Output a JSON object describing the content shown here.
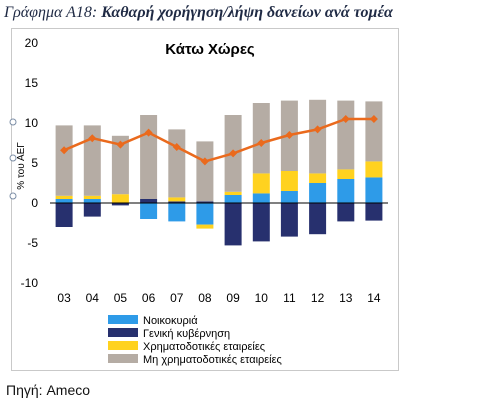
{
  "heading": {
    "label": "Γράφημα Α18:",
    "title": "Καθαρή χορήγηση/λήψη δανείων ανά τομέα"
  },
  "source": "Πηγή: Ameco",
  "chart_data": {
    "type": "bar",
    "stacked": true,
    "title": "Κάτω Χώρες",
    "ylabel": "% του ΑΕΓ",
    "xlabel": "",
    "categories": [
      "03",
      "04",
      "05",
      "06",
      "07",
      "08",
      "09",
      "10",
      "11",
      "12",
      "13",
      "14"
    ],
    "ylim": [
      -10,
      20
    ],
    "yticks": [
      -10,
      -5,
      0,
      5,
      10,
      15,
      20
    ],
    "grid": false,
    "legend_position": "bottom",
    "series": [
      {
        "name": "Νοικοκυριά",
        "kind": "bar",
        "color": "#2e9be8",
        "values": [
          0.5,
          0.5,
          0.0,
          -2.0,
          -2.3,
          -2.7,
          1.0,
          1.2,
          1.5,
          2.5,
          3.0,
          3.2
        ]
      },
      {
        "name": "Γενική κυβέρνηση",
        "kind": "bar",
        "color": "#27306e",
        "values": [
          -3.0,
          -1.7,
          -0.3,
          0.5,
          0.2,
          0.2,
          -5.3,
          -4.8,
          -4.2,
          -3.9,
          -2.3,
          -2.2
        ]
      },
      {
        "name": "Χρηματοδοτικές εταιρείες",
        "kind": "bar",
        "color": "#ffd21f",
        "values": [
          0.4,
          0.4,
          1.1,
          0.0,
          0.5,
          -0.5,
          0.4,
          2.5,
          2.5,
          1.2,
          1.2,
          2.0
        ]
      },
      {
        "name": "Μη χρηματοδοτικές εταιρείες",
        "kind": "bar",
        "color": "#b5aca4",
        "values": [
          8.8,
          8.8,
          7.3,
          10.5,
          8.5,
          7.5,
          9.6,
          8.8,
          8.8,
          9.2,
          8.6,
          7.5
        ]
      },
      {
        "kind": "line",
        "color": "#ea6a1d",
        "values": [
          6.6,
          8.1,
          7.3,
          8.8,
          7.0,
          5.2,
          6.2,
          7.5,
          8.5,
          9.2,
          10.5,
          10.5
        ]
      }
    ]
  }
}
